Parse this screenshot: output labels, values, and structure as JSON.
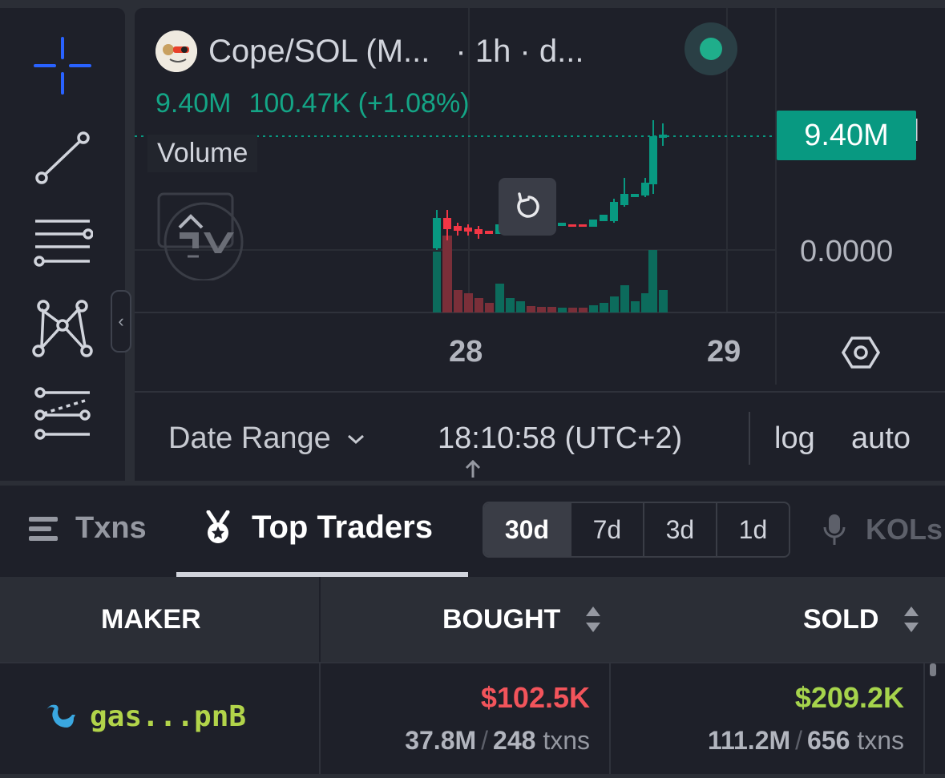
{
  "legend": {
    "pair": "Cope/SOL (M...",
    "interval": "· 1h · d...",
    "ohlc_value": "9.40M",
    "change": "100.47K (+1.08%)",
    "volume_label": "Volume"
  },
  "price_axis": {
    "last_price_tag": "9.40M",
    "zero_label": "0.0000"
  },
  "time_axis": {
    "label_28": "28",
    "label_29": "29"
  },
  "bottom_bar": {
    "date_range": "Date Range",
    "time": "18:10:58 (UTC+2)",
    "log": "log",
    "auto": "auto"
  },
  "colors": {
    "up": "#089981",
    "down": "#c2404c",
    "accent_blue": "#2962ff"
  },
  "tabs": {
    "txns": "Txns",
    "top_traders": "Top Traders",
    "periods": [
      "30d",
      "7d",
      "3d",
      "1d"
    ],
    "active_period": "30d",
    "kols": "KOLs"
  },
  "table": {
    "headers": {
      "maker": "MAKER",
      "bought": "BOUGHT",
      "sold": "SOLD"
    },
    "rows": [
      {
        "maker": "gas...pnB",
        "bought_usd": "$102.5K",
        "bought_amount": "37.8M",
        "bought_txns": "248",
        "sold_usd": "$209.2K",
        "sold_amount": "111.2M",
        "sold_txns": "656",
        "txns_word": "txns",
        "slash": "/"
      }
    ]
  },
  "icons": {
    "collapse_arrow": "‹",
    "chevron": "⌄"
  }
}
